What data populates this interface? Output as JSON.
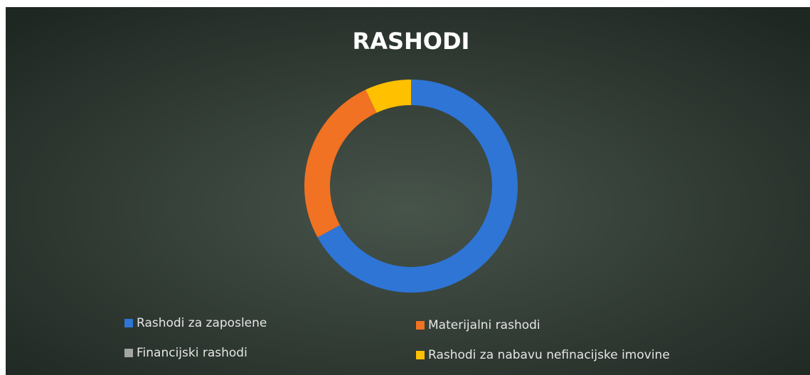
{
  "chart_data": {
    "type": "donut",
    "title": "RASHODI",
    "categories": [
      "Rashodi za zaposlene",
      "Materijalni rashodi",
      "Financijski rashodi",
      "Rashodi za nabavu nefinacijske imovine"
    ],
    "values": [
      67,
      26,
      0,
      7
    ],
    "colors": [
      "#2e75d6",
      "#f07222",
      "#a5a5a5",
      "#ffc000"
    ],
    "legend": "bottom"
  }
}
